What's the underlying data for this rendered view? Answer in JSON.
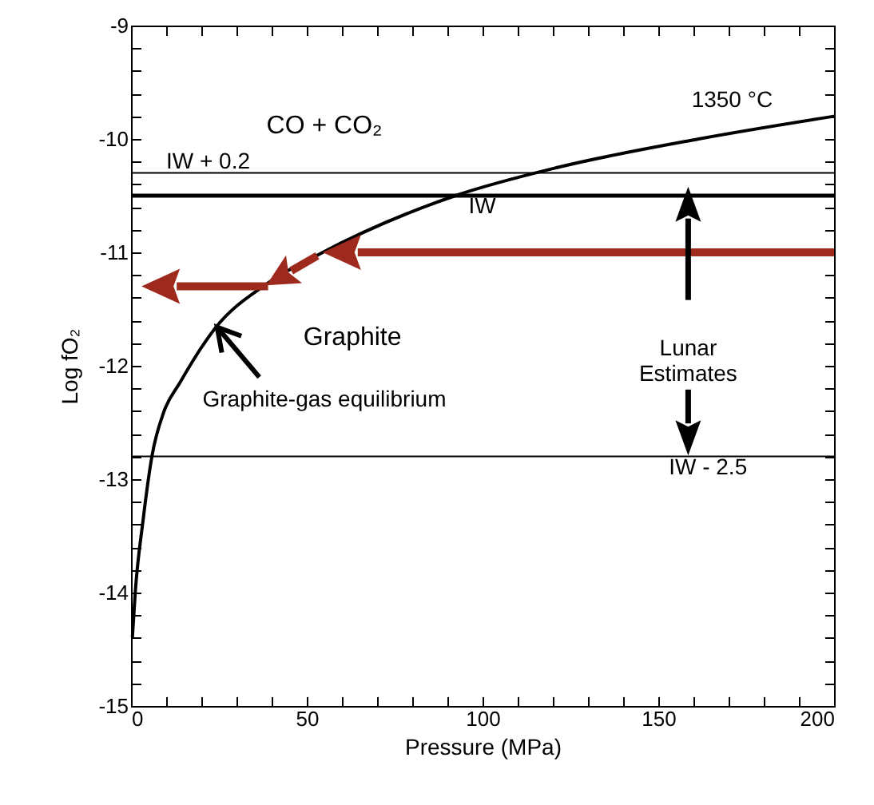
{
  "chart_data": {
    "type": "line",
    "xlabel": "Pressure (MPa)",
    "ylabel": "Log fO₂",
    "xlim": [
      0,
      200
    ],
    "ylim": [
      -15,
      -9
    ],
    "xticks": [
      0,
      {
        "value": 10,
        "label": null
      },
      {
        "value": 20,
        "label": null
      },
      {
        "value": 30,
        "label": null
      },
      {
        "value": 40,
        "label": null
      },
      50,
      {
        "value": 60,
        "label": null
      },
      {
        "value": 70,
        "label": null
      },
      {
        "value": 80,
        "label": null
      },
      {
        "value": 90,
        "label": null
      },
      100,
      {
        "value": 110,
        "label": null
      },
      {
        "value": 120,
        "label": null
      },
      {
        "value": 130,
        "label": null
      },
      {
        "value": 140,
        "label": null
      },
      150,
      {
        "value": 160,
        "label": null
      },
      {
        "value": 170,
        "label": null
      },
      {
        "value": 180,
        "label": null
      },
      {
        "value": 190,
        "label": null
      },
      200
    ],
    "yticks": [
      -15,
      {
        "value": -14.8,
        "label": null
      },
      {
        "value": -14.6,
        "label": null
      },
      {
        "value": -14.4,
        "label": null
      },
      {
        "value": -14.2,
        "label": null
      },
      -14,
      {
        "value": -13.8,
        "label": null
      },
      {
        "value": -13.6,
        "label": null
      },
      {
        "value": -13.4,
        "label": null
      },
      {
        "value": -13.2,
        "label": null
      },
      -13,
      {
        "value": -12.8,
        "label": null
      },
      {
        "value": -12.6,
        "label": null
      },
      {
        "value": -12.4,
        "label": null
      },
      {
        "value": -12.2,
        "label": null
      },
      -12,
      {
        "value": -11.8,
        "label": null
      },
      {
        "value": -11.6,
        "label": null
      },
      {
        "value": -11.4,
        "label": null
      },
      {
        "value": -11.2,
        "label": null
      },
      -11,
      {
        "value": -10.8,
        "label": null
      },
      {
        "value": -10.6,
        "label": null
      },
      {
        "value": -10.4,
        "label": null
      },
      {
        "value": -10.2,
        "label": null
      },
      -10,
      {
        "value": -9.8,
        "label": null
      },
      {
        "value": -9.6,
        "label": null
      },
      {
        "value": -9.4,
        "label": null
      },
      {
        "value": -9.2,
        "label": null
      },
      -9
    ],
    "series": [
      {
        "type": "line",
        "color": "#000000",
        "x": [
          0.4,
          1.2,
          3.4,
          6.0,
          9.3,
          13.9,
          23.9,
          38.5,
          53.9,
          92.3,
          121.5,
          161.5,
          200
        ],
        "values": [
          -14.39,
          -14.0,
          -13.37,
          -12.79,
          -12.41,
          -12.15,
          -11.67,
          -11.28,
          -11.01,
          -10.5,
          -10.25,
          -10.0,
          -9.8
        ]
      }
    ],
    "ref_lines": [
      {
        "axis": "y",
        "value": -10.3,
        "label": "IW + 0.2"
      },
      {
        "axis": "y",
        "value": -10.5,
        "label": "IW"
      },
      {
        "axis": "y",
        "value": -12.8,
        "label": "IW - 2.5"
      }
    ],
    "annotations": [
      "CO + CO₂",
      "1350 °C",
      "Graphite",
      "Lunar\nEstimates",
      "Graphite-gas equilibrium"
    ]
  }
}
